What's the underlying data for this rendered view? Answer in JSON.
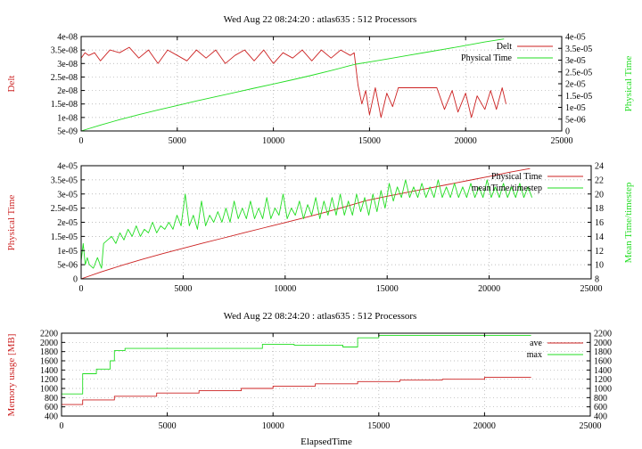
{
  "colors": {
    "red": "#cc2222",
    "green": "#22dd22",
    "axis": "#000000",
    "grid": "#aaaaaa"
  },
  "chart_data": [
    {
      "type": "line",
      "title": "Wed Aug 22 08:24:20 : atlas635 : 512 Processors",
      "xlabel": "",
      "ylabel_left": "Delt",
      "ylabel_right": "Physical Time",
      "xlim": [
        0,
        25000
      ],
      "ylim_left": [
        5e-09,
        4e-08
      ],
      "ylim_right": [
        0,
        4e-05
      ],
      "xticks": [
        "0",
        "5000",
        "10000",
        "15000",
        "20000",
        "25000"
      ],
      "yticks_left": [
        "5e-09",
        "1e-08",
        "1.5e-08",
        "2e-08",
        "2.5e-08",
        "3e-08",
        "3.5e-08",
        "4e-08"
      ],
      "yticks_right": [
        "0",
        "5e-06",
        "1e-05",
        "1.5e-05",
        "2e-05",
        "2.5e-05",
        "3e-05",
        "3.5e-05",
        "4e-05"
      ],
      "grid": true,
      "legend_position": "top-right",
      "series": [
        {
          "name": "Delt",
          "axis": "left",
          "color": "red",
          "x": [
            0,
            200,
            400,
            700,
            1000,
            1500,
            2000,
            2500,
            3000,
            3500,
            4000,
            4500,
            5000,
            5500,
            6000,
            6500,
            7000,
            7500,
            8000,
            8500,
            9000,
            9500,
            10000,
            10500,
            11000,
            11500,
            12000,
            12500,
            13000,
            13500,
            14000,
            14200,
            14400,
            14600,
            14800,
            15000,
            15300,
            15600,
            15900,
            16200,
            16500,
            17000,
            17500,
            18000,
            18500,
            18900,
            19300,
            19600,
            20000,
            20300,
            20600,
            21000,
            21300,
            21600,
            21900,
            22100
          ],
          "y": [
            3.2e-08,
            3.4e-08,
            3.3e-08,
            3.4e-08,
            3.1e-08,
            3.5e-08,
            3.4e-08,
            3.6e-08,
            3.2e-08,
            3.5e-08,
            3e-08,
            3.5e-08,
            3.3e-08,
            3.1e-08,
            3.5e-08,
            3.2e-08,
            3.5e-08,
            3e-08,
            3.3e-08,
            3.5e-08,
            3.1e-08,
            3.5e-08,
            3e-08,
            3.4e-08,
            3.2e-08,
            3.5e-08,
            3.1e-08,
            3.5e-08,
            3.2e-08,
            3.5e-08,
            3.3e-08,
            3.4e-08,
            2.2e-08,
            1.5e-08,
            2e-08,
            1.1e-08,
            2.1e-08,
            1e-08,
            1.9e-08,
            1.4e-08,
            2.1e-08,
            2.1e-08,
            2.1e-08,
            2.1e-08,
            2.1e-08,
            1.3e-08,
            2e-08,
            1.2e-08,
            1.9e-08,
            1e-08,
            1.8e-08,
            1.3e-08,
            2e-08,
            1.3e-08,
            2.1e-08,
            1.5e-08
          ]
        },
        {
          "name": "Physical Time",
          "axis": "right",
          "color": "green",
          "x": [
            0,
            1000,
            2000,
            3000,
            4000,
            5000,
            6000,
            7000,
            8000,
            9000,
            10000,
            11000,
            12000,
            13000,
            14000,
            14300,
            15000,
            16000,
            17000,
            18000,
            19000,
            20000,
            21000,
            22000
          ],
          "y": [
            0,
            2.5e-06,
            4.8e-06,
            6.9e-06,
            8.9e-06,
            1.08e-05,
            1.27e-05,
            1.45e-05,
            1.63e-05,
            1.81e-05,
            1.99e-05,
            2.17e-05,
            2.36e-05,
            2.56e-05,
            2.77e-05,
            2.83e-05,
            2.92e-05,
            3.06e-05,
            3.2e-05,
            3.34e-05,
            3.48e-05,
            3.62e-05,
            3.77e-05,
            3.9e-05
          ]
        }
      ]
    },
    {
      "type": "line",
      "title": "",
      "xlabel": "",
      "ylabel_left": "Physical Time",
      "ylabel_right": "Mean Time/timestep",
      "xlim": [
        0,
        25000
      ],
      "ylim_left": [
        0,
        4e-05
      ],
      "ylim_right": [
        8,
        24
      ],
      "xticks": [
        "0",
        "5000",
        "10000",
        "15000",
        "20000",
        "25000"
      ],
      "yticks_left": [
        "0",
        "5e-06",
        "1e-05",
        "1.5e-05",
        "2e-05",
        "2.5e-05",
        "3e-05",
        "3.5e-05",
        "4e-05"
      ],
      "yticks_right": [
        "8",
        "10",
        "12",
        "14",
        "16",
        "18",
        "20",
        "22",
        "24"
      ],
      "grid": true,
      "legend_position": "top-right",
      "series": [
        {
          "name": "Physical Time",
          "axis": "left",
          "color": "red",
          "x": [
            0,
            1000,
            2000,
            3000,
            4000,
            5000,
            6000,
            7000,
            8000,
            9000,
            10000,
            11000,
            12000,
            13000,
            14000,
            15000,
            16000,
            17000,
            18000,
            19000,
            20000,
            21000,
            22000
          ],
          "y": [
            0,
            2.5e-06,
            4.8e-06,
            6.9e-06,
            8.9e-06,
            1.08e-05,
            1.27e-05,
            1.45e-05,
            1.63e-05,
            1.81e-05,
            1.99e-05,
            2.17e-05,
            2.36e-05,
            2.56e-05,
            2.77e-05,
            2.92e-05,
            3.06e-05,
            3.2e-05,
            3.34e-05,
            3.48e-05,
            3.62e-05,
            3.77e-05,
            3.9e-05
          ]
        },
        {
          "name": "meanTime/timestep",
          "axis": "right",
          "color": "green",
          "x": [
            0,
            100,
            200,
            300,
            400,
            600,
            800,
            1000,
            1100,
            1300,
            1500,
            1700,
            1900,
            2100,
            2300,
            2500,
            2700,
            2900,
            3100,
            3300,
            3500,
            3700,
            3900,
            4100,
            4300,
            4500,
            4700,
            4900,
            5100,
            5300,
            5500,
            5700,
            5900,
            6100,
            6300,
            6500,
            6700,
            6900,
            7100,
            7300,
            7500,
            7700,
            7900,
            8100,
            8300,
            8500,
            8700,
            8900,
            9100,
            9300,
            9500,
            9700,
            9900,
            10100,
            10300,
            10500,
            10700,
            10900,
            11100,
            11300,
            11500,
            11700,
            11900,
            12100,
            12300,
            12500,
            12700,
            12900,
            13100,
            13300,
            13500,
            13700,
            13900,
            14100,
            14300,
            14500,
            14700,
            14900,
            15100,
            15300,
            15500,
            15700,
            15900,
            16100,
            16300,
            16500,
            16700,
            16900,
            17100,
            17300,
            17500,
            17700,
            17900,
            18100,
            18300,
            18500,
            18700,
            18900,
            19100,
            19300,
            19500,
            19700,
            19900,
            20100,
            20300,
            20500,
            20700,
            20900,
            21100,
            21300,
            21500,
            21700,
            21900,
            22100
          ],
          "y": [
            10.5,
            13,
            10,
            11,
            10,
            9.5,
            11,
            9.5,
            13,
            13.5,
            14,
            13,
            14.5,
            13.5,
            15,
            14,
            15.5,
            14,
            15,
            14.5,
            16,
            14.5,
            15.5,
            15,
            16,
            15,
            17,
            15.5,
            20,
            15.5,
            17,
            15,
            19,
            15.5,
            17,
            16,
            17.5,
            16,
            18,
            16,
            19,
            16.5,
            18,
            16.5,
            19,
            16.5,
            18,
            16.5,
            19.5,
            16.5,
            18,
            17,
            20,
            16.5,
            18,
            17,
            19,
            16.5,
            18.5,
            17,
            19.5,
            16.5,
            19,
            17,
            19.5,
            17,
            20,
            17,
            19,
            17,
            20,
            17.5,
            19.5,
            17,
            20,
            17.5,
            20.5,
            18,
            21.5,
            19,
            21,
            19.5,
            22,
            19.5,
            21,
            19.5,
            21.5,
            19.5,
            21,
            19.5,
            22,
            19.5,
            21,
            19.5,
            21.5,
            19.5,
            21,
            19.5,
            21.5,
            19.5,
            21,
            19.5,
            22,
            19.5,
            21,
            19.5,
            21.5,
            19.5,
            21,
            19.5,
            21.5,
            19.5,
            21,
            19.5
          ]
        }
      ]
    },
    {
      "type": "line",
      "title": "Wed Aug 22 08:24:20 : atlas635 : 512 Processors",
      "xlabel": "ElapsedTime",
      "ylabel_left": "Memory usage [MB]",
      "ylabel_right": "",
      "xlim": [
        0,
        25000
      ],
      "ylim_left": [
        400,
        2200
      ],
      "ylim_right": [
        400,
        2200
      ],
      "xticks": [
        "0",
        "5000",
        "10000",
        "15000",
        "20000",
        "25000"
      ],
      "yticks_left": [
        "400",
        "600",
        "800",
        "1000",
        "1200",
        "1400",
        "1600",
        "1800",
        "2000",
        "2200"
      ],
      "yticks_right": [
        "400",
        "600",
        "800",
        "1000",
        "1200",
        "1400",
        "1600",
        "1800",
        "2000",
        "2200"
      ],
      "grid": true,
      "legend_position": "top-right",
      "series": [
        {
          "name": "ave",
          "axis": "left",
          "color": "red",
          "x": [
            0,
            1000,
            1000,
            2500,
            2500,
            4500,
            4500,
            6500,
            6500,
            8500,
            8500,
            10000,
            10000,
            12000,
            12000,
            14000,
            14000,
            16000,
            16000,
            18000,
            18000,
            20000,
            20000,
            22200
          ],
          "y": [
            650,
            650,
            750,
            750,
            830,
            830,
            900,
            900,
            950,
            950,
            1000,
            1000,
            1050,
            1050,
            1100,
            1100,
            1150,
            1150,
            1180,
            1180,
            1200,
            1200,
            1240,
            1240
          ]
        },
        {
          "name": "max",
          "axis": "left",
          "color": "green",
          "x": [
            0,
            1000,
            1000,
            1650,
            1650,
            2300,
            2300,
            2500,
            2500,
            3000,
            3000,
            9500,
            9500,
            11000,
            11000,
            13300,
            13300,
            14000,
            14000,
            15000,
            15000,
            22200
          ],
          "y": [
            880,
            880,
            1320,
            1320,
            1420,
            1420,
            1600,
            1600,
            1820,
            1820,
            1870,
            1870,
            1960,
            1960,
            1940,
            1940,
            1900,
            1900,
            2100,
            2100,
            2150,
            2150
          ]
        }
      ]
    }
  ]
}
